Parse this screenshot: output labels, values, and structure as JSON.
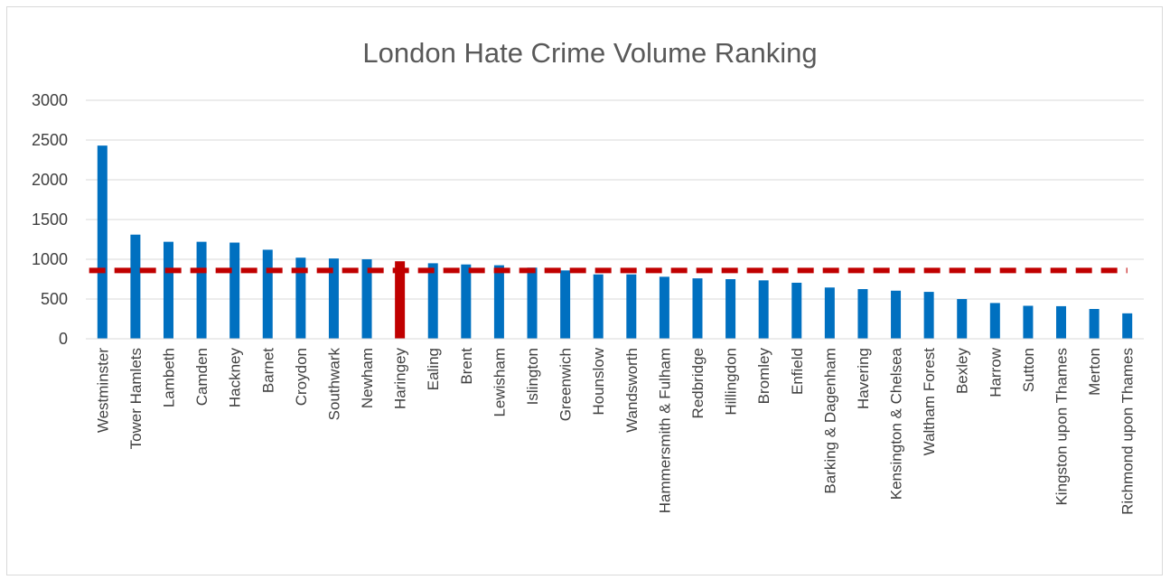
{
  "chart_data": {
    "type": "bar",
    "title": "London Hate Crime Volume Ranking",
    "xlabel": "",
    "ylabel": "",
    "ylim": [
      0,
      3000
    ],
    "yticks": [
      0,
      500,
      1000,
      1500,
      2000,
      2500,
      3000
    ],
    "grid": true,
    "legend": "none",
    "reference_line": {
      "value": 860,
      "style": "dashed",
      "color": "#c00000"
    },
    "colors": {
      "default": "#0070c0",
      "highlight": "#c00000",
      "grid": "#d9d9d9"
    },
    "highlight_category": "Haringey",
    "categories": [
      "Westminster",
      "Tower Hamlets",
      "Lambeth",
      "Camden",
      "Hackney",
      "Barnet",
      "Croydon",
      "Southwark",
      "Newham",
      "Haringey",
      "Ealing",
      "Brent",
      "Lewisham",
      "Islington",
      "Greenwich",
      "Hounslow",
      "Wandsworth",
      "Hammersmith & Fulham",
      "Redbridge",
      "Hillingdon",
      "Bromley",
      "Enfield",
      "Barking & Dagenham",
      "Havering",
      "Kensington & Chelsea",
      "Waltham Forest",
      "Bexley",
      "Harrow",
      "Sutton",
      "Kingston upon Thames",
      "Merton",
      "Richmond upon Thames"
    ],
    "values": [
      2430,
      1310,
      1220,
      1220,
      1210,
      1120,
      1020,
      1010,
      1000,
      975,
      950,
      935,
      925,
      895,
      860,
      810,
      810,
      780,
      760,
      750,
      735,
      705,
      645,
      625,
      605,
      590,
      500,
      450,
      415,
      410,
      375,
      320
    ]
  }
}
